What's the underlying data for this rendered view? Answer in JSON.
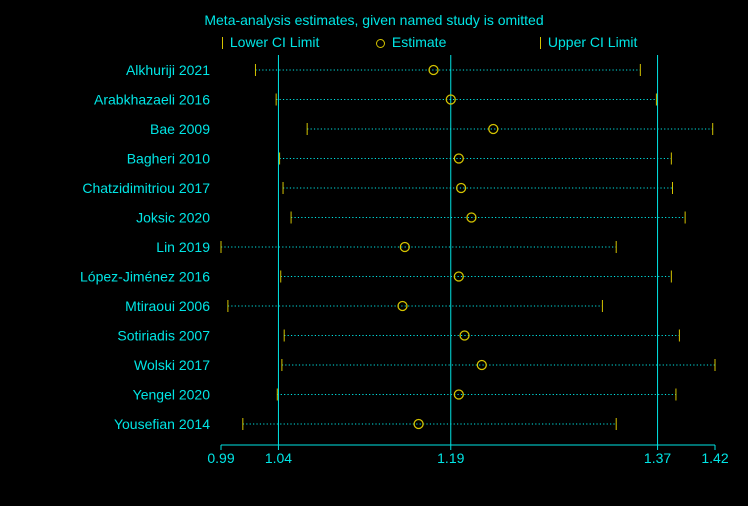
{
  "title": "Meta-analysis estimates, given named study is omitted",
  "legend": {
    "lower": "Lower CI Limit",
    "estimate": "Estimate",
    "upper": "Upper CI Limit"
  },
  "colors": {
    "background": "#000000",
    "text": "#00e5e5",
    "axis": "#00e5e5",
    "marker": "#d4c300",
    "ci_line": "#00e5e5"
  },
  "chart_data": {
    "type": "scatter",
    "title": "Meta-analysis estimates, given named study is omitted",
    "xlim": [
      0.99,
      1.42
    ],
    "x_ticks": [
      0.99,
      1.04,
      1.19,
      1.37,
      1.42
    ],
    "x_tick_labels": [
      "0.99",
      "1.04",
      "1.19",
      "1.37",
      "1.42"
    ],
    "reference_lines": [
      1.04,
      1.19,
      1.37
    ],
    "grid": false,
    "legend_position": "top",
    "studies": [
      {
        "name": "Alkhuriji 2021",
        "lower": 1.02,
        "estimate": 1.175,
        "upper": 1.355
      },
      {
        "name": "Arabkhazaeli 2016",
        "lower": 1.038,
        "estimate": 1.19,
        "upper": 1.369
      },
      {
        "name": "Bae 2009",
        "lower": 1.065,
        "estimate": 1.227,
        "upper": 1.418
      },
      {
        "name": "Bagheri 2010",
        "lower": 1.041,
        "estimate": 1.197,
        "upper": 1.382
      },
      {
        "name": "Chatzidimitriou 2017",
        "lower": 1.044,
        "estimate": 1.199,
        "upper": 1.383
      },
      {
        "name": "Joksic 2020",
        "lower": 1.051,
        "estimate": 1.208,
        "upper": 1.394
      },
      {
        "name": "Lin 2019",
        "lower": 0.99,
        "estimate": 1.15,
        "upper": 1.334
      },
      {
        "name": "López-Jiménez 2016",
        "lower": 1.042,
        "estimate": 1.197,
        "upper": 1.382
      },
      {
        "name": "Mtiraoui 2006",
        "lower": 0.996,
        "estimate": 1.148,
        "upper": 1.322
      },
      {
        "name": "Sotiriadis 2007",
        "lower": 1.045,
        "estimate": 1.202,
        "upper": 1.389
      },
      {
        "name": "Wolski 2017",
        "lower": 1.043,
        "estimate": 1.217,
        "upper": 1.42
      },
      {
        "name": "Yengel 2020",
        "lower": 1.039,
        "estimate": 1.197,
        "upper": 1.386
      },
      {
        "name": "Yousefian 2014",
        "lower": 1.009,
        "estimate": 1.162,
        "upper": 1.334
      }
    ]
  }
}
